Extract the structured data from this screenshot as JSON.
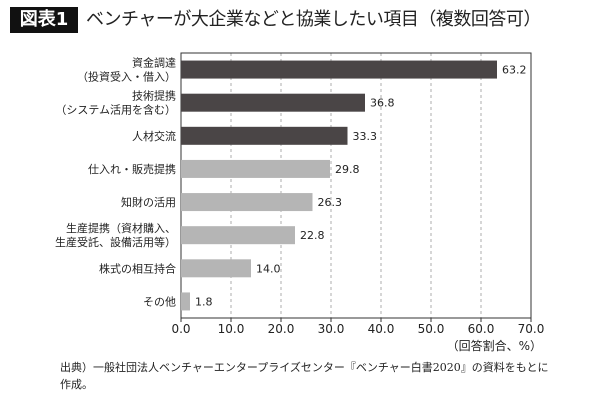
{
  "header": {
    "badge": "図表1",
    "title": "ベンチャーが大企業などと協業したい項目（複数回答可）"
  },
  "chart_data": {
    "type": "bar",
    "orientation": "horizontal",
    "title": "ベンチャーが大企業などと協業したい項目（複数回答可）",
    "categories": [
      [
        "資金調達",
        "（投資受入・借入）"
      ],
      [
        "技術提携",
        "（システム活用を含む）"
      ],
      [
        "人材交流"
      ],
      [
        "仕入れ・販売提携"
      ],
      [
        "知財の活用"
      ],
      [
        "生産提携（資材購入、",
        "生産受託、設備活用等）"
      ],
      [
        "株式の相互持合"
      ],
      [
        "その他"
      ]
    ],
    "values": [
      63.2,
      36.8,
      33.3,
      29.8,
      26.3,
      22.8,
      14.0,
      1.8
    ],
    "value_labels": [
      "63.2",
      "36.8",
      "33.3",
      "29.8",
      "26.3",
      "22.8",
      "14.0",
      "1.8"
    ],
    "bar_colors": [
      "#4a4546",
      "#4a4546",
      "#4a4546",
      "#b5b5b5",
      "#b5b5b5",
      "#b5b5b5",
      "#b5b5b5",
      "#b5b5b5"
    ],
    "xlim": [
      0,
      70
    ],
    "xticks": [
      "0.0",
      "10.0",
      "20.0",
      "30.0",
      "40.0",
      "50.0",
      "60.0",
      "70.0"
    ],
    "xlabel": "（回答割合、%）",
    "grid": "vertical dashed"
  },
  "source": "出典）一般社団法人ベンチャーエンタープライズセンター『ベンチャー白書2020』の資料をもとに作成。"
}
